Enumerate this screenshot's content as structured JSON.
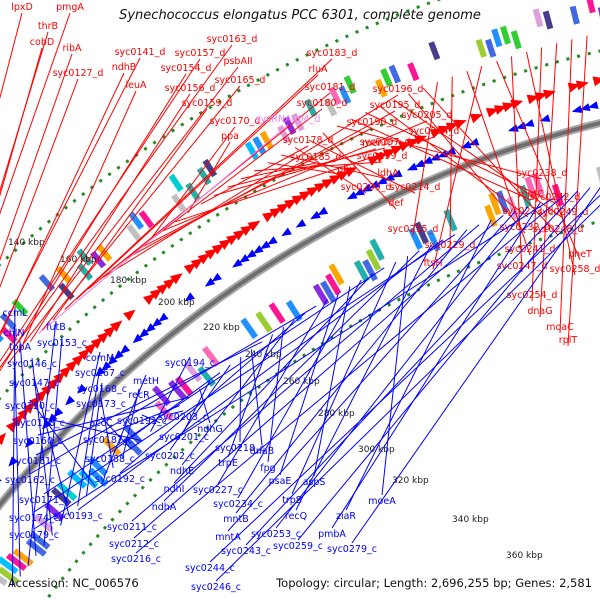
{
  "title": "Synechococcus elongatus PCC 6301, complete genome",
  "accession": "Accession: NC_006576",
  "summary": "Topology: circular; Length: 2,696,255 bp; Genes: 2,581",
  "colors": {
    "forward": "#ff0000",
    "reverse": "#0000ff",
    "rna": "#ee82ee",
    "backbone": "#808080",
    "dots": "#228b22"
  },
  "ticks": [
    "140 kbp",
    "160 kbp",
    "180 kbp",
    "200 kbp",
    "220 kbp",
    "240 kbp",
    "260 kbp",
    "280 kbp",
    "300 kbp",
    "320 kbp",
    "340 kbp",
    "360 kbp"
  ],
  "forward_labels": [
    "lpxD",
    "pmgA",
    "thrB",
    "cobD",
    "ribA",
    "syc0127_d",
    "syc0141_d",
    "ndhB",
    "syc0157_d",
    "syc0163_d",
    "syc0154_d",
    "psbAII",
    "leuA",
    "syc0156_d",
    "syc0165_d",
    "syc0159_d",
    "syc0183_d",
    "rluA",
    "syc0181_d",
    "syc0196_d",
    "syc0180_d",
    "syc0195_d",
    "syc0190_d",
    "syc0170_d",
    "syc0205_d",
    "syc0204_d",
    "ppa",
    "syc0178_d",
    "menA",
    "syc0197_d",
    "syc0185_d",
    "syc0199_d",
    "phy",
    "ldhA",
    "syc0200_d",
    "syc0214_d",
    "def",
    "syc0238_d",
    "mntC",
    "syc0242_d",
    "syc0233_d",
    "syc0249_d",
    "syc0232_d",
    "syc0248_d",
    "syc0215_d",
    "syc0229_d",
    "syc0241_d",
    "ftsH",
    "pheT",
    "syc0247_d",
    "syc0258_d",
    "syc0254_d",
    "dnaG",
    "moaC",
    "rplT"
  ],
  "rna_labels": [
    "sycRNA004_d"
  ],
  "reverse_labels": [
    "ccmL",
    "chlN",
    "futB",
    "topA",
    "syc0153_c",
    "syc0146_c",
    "comM",
    "syc0147_c",
    "syc0167_c",
    "syc0168_c",
    "syc0150_c",
    "metH",
    "syc0173_c",
    "recR",
    "accC",
    "syc0158_c",
    "syc0194_c",
    "syc0191_c",
    "syc0203_c",
    "syc0187_c",
    "syc0160_c",
    "ndhG",
    "syc0201_c",
    "syc0188_c",
    "syc0202_c",
    "syc0218_c",
    "dnaB",
    "syc0161_c",
    "trpE",
    "fpg",
    "ndhE",
    "syc0192_c",
    "syc0162_c",
    "syc0227_c",
    "psaE",
    "aspS",
    "syc0234_c",
    "ndhI",
    "syc0171_c",
    "trpS",
    "moeA",
    "ndhA",
    "recQ",
    "syc0193_c",
    "syc0174_c",
    "mntB",
    "syc0211_c",
    "ziaR",
    "syc0212_c",
    "mntA",
    "syc0253_c",
    "pmbA",
    "syc0179_c",
    "syc0216_c",
    "syc0243_c",
    "syc0259_c",
    "syc0279_c",
    "syc0244_c",
    "syc0246_c"
  ]
}
